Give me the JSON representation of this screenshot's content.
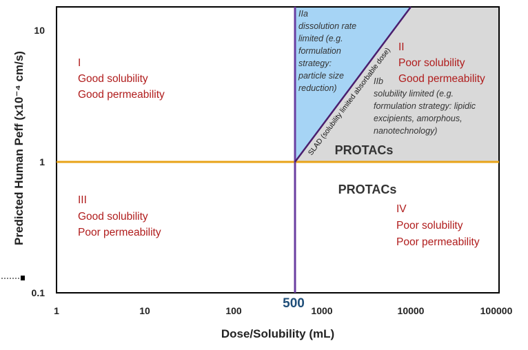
{
  "colors": {
    "frame": "#000000",
    "purple_line": "#6a3ea1",
    "orange_line": "#e8a317",
    "blue_region": "#a6d4f5",
    "grey_region": "#d9d9d9",
    "red_text": "#b01c1c"
  },
  "chart_data": {
    "type": "classification-diagram",
    "x_axis": {
      "label": "Dose/Solubility (mL)",
      "scale": "log",
      "range": [
        1,
        100000
      ],
      "ticks": [
        "1",
        "10",
        "100",
        "1000",
        "10000",
        "100000"
      ]
    },
    "y_axis": {
      "label": "Predicted Human Peff (x10⁻⁴ cm/s)",
      "scale": "log",
      "range": [
        0.1,
        15
      ],
      "ticks": [
        "0.1",
        "1",
        "10"
      ]
    },
    "thresholds": {
      "dose_solubility": 500,
      "peff": 1,
      "marker_label": "500"
    },
    "slad_line": {
      "label": "SLAD (solubility limited absorbable dose)",
      "from": [
        500,
        1
      ],
      "to": [
        10000,
        15
      ]
    },
    "quadrants": {
      "I": {
        "title": "I",
        "lines": [
          "Good solubility",
          "Good permeability"
        ]
      },
      "II": {
        "title": "II",
        "lines": [
          "Poor solubility",
          "Good permeability"
        ]
      },
      "III": {
        "title": "III",
        "lines": [
          "Good solubility",
          "Poor permeability"
        ]
      },
      "IV": {
        "title": "IV",
        "lines": [
          "Poor solubility",
          "Poor permeability"
        ]
      },
      "IIa": {
        "title": "IIa",
        "lines": [
          "dissolution rate",
          "limited (e.g.",
          "formulation",
          "strategy:",
          "particle size",
          "reduction)"
        ]
      },
      "IIb": {
        "title": "IIb",
        "lines": [
          "solubility limited (e.g.",
          "formulation strategy: lipidic",
          "excipients, amorphous,",
          "nanotechnology)"
        ]
      }
    },
    "annotations": [
      "PROTACs",
      "PROTACs"
    ]
  }
}
